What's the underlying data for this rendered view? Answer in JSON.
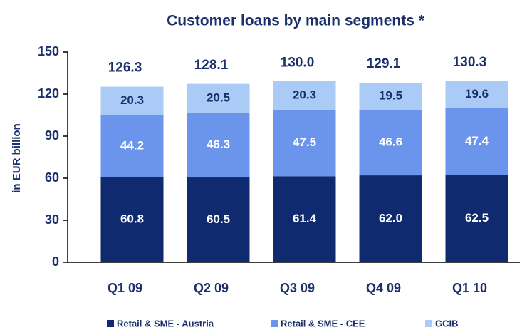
{
  "chart_data": {
    "type": "stacked_bar",
    "title": "Customer loans by main segments *",
    "y_label": "in EUR billion",
    "categories": [
      "Q1 09",
      "Q2 09",
      "Q3 09",
      "Q4 09",
      "Q1 10"
    ],
    "series": [
      {
        "name": "Retail & SME - Austria",
        "color": "#0f2a6e",
        "text_color": "#ffffff",
        "values": [
          60.8,
          60.5,
          61.4,
          62.0,
          62.5
        ],
        "value_labels": [
          "60.8",
          "60.5",
          "61.4",
          "62.0",
          "62.5"
        ]
      },
      {
        "name": "Retail & SME - CEE",
        "color": "#6b94ec",
        "text_color": "#ffffff",
        "values": [
          44.2,
          46.3,
          47.5,
          46.6,
          47.4
        ],
        "value_labels": [
          "44.2",
          "46.3",
          "47.5",
          "46.6",
          "47.4"
        ]
      },
      {
        "name": "GCIB",
        "color": "#a9cbf6",
        "text_color": "#1a2f6b",
        "values": [
          20.3,
          20.5,
          20.3,
          19.5,
          19.6
        ],
        "value_labels": [
          "20.3",
          "20.5",
          "20.3",
          "19.5",
          "19.6"
        ]
      }
    ],
    "totals": [
      126.3,
      128.1,
      130.0,
      129.1,
      130.3
    ],
    "total_labels": [
      "126.3",
      "128.1",
      "130.0",
      "129.1",
      "130.3"
    ],
    "ylim": [
      0,
      150
    ],
    "yticks": [
      0,
      30,
      60,
      90,
      120,
      150
    ],
    "grid": false
  }
}
